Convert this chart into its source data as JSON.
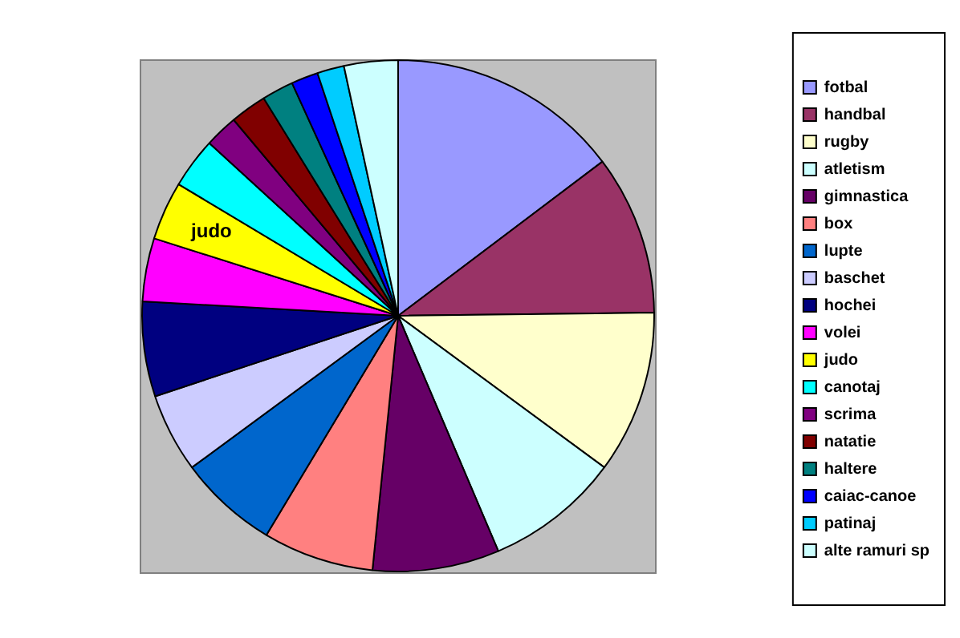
{
  "chart_data": {
    "type": "pie",
    "categories": [
      "fotbal",
      "handbal",
      "rugby",
      "atletism",
      "gimnastica",
      "box",
      "lupte",
      "baschet",
      "hochei",
      "volei",
      "judo",
      "canotaj",
      "scrima",
      "natatie",
      "haltere",
      "caiac-canoe",
      "patinaj",
      "alte ramuri sp"
    ],
    "values": [
      14.7,
      10.1,
      10.3,
      8.5,
      8.0,
      7.0,
      6.3,
      5.0,
      6.0,
      4.0,
      3.7,
      3.2,
      2.1,
      2.3,
      2.0,
      1.7,
      1.7,
      3.4
    ],
    "colors": [
      "#9999ff",
      "#993366",
      "#ffffcc",
      "#ccffff",
      "#660066",
      "#ff8080",
      "#0066cc",
      "#ccccff",
      "#000080",
      "#ff00ff",
      "#ffff00",
      "#00ffff",
      "#800080",
      "#800000",
      "#008080",
      "#0000ff",
      "#00ccff",
      "#ccffff"
    ],
    "annotations": [
      {
        "text": "judo",
        "x": "judo"
      }
    ],
    "legend": "right"
  }
}
